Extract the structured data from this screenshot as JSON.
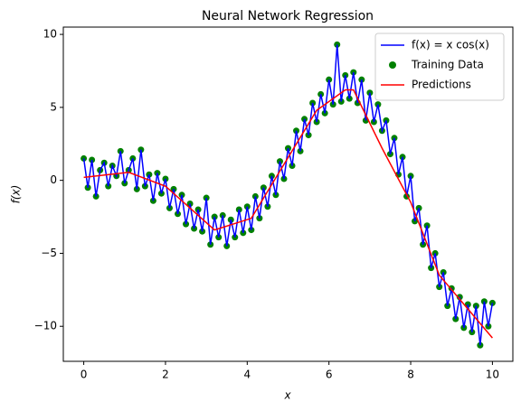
{
  "chart_data": {
    "type": "line",
    "title": "Neural Network Regression",
    "xlabel": "x",
    "ylabel": "f(x)",
    "x": [
      0,
      0.1,
      0.2,
      0.3,
      0.4,
      0.5,
      0.6,
      0.7,
      0.8,
      0.9,
      1,
      1.1,
      1.2,
      1.3,
      1.4,
      1.5,
      1.6,
      1.7,
      1.8,
      1.9,
      2,
      2.1,
      2.2,
      2.3,
      2.4,
      2.5,
      2.6,
      2.7,
      2.8,
      2.9,
      3,
      3.1,
      3.2,
      3.3,
      3.4,
      3.5,
      3.6,
      3.7,
      3.8,
      3.9,
      4,
      4.1,
      4.2,
      4.3,
      4.4,
      4.5,
      4.6,
      4.7,
      4.8,
      4.9,
      5,
      5.1,
      5.2,
      5.3,
      5.4,
      5.5,
      5.6,
      5.7,
      5.8,
      5.9,
      6,
      6.1,
      6.2,
      6.3,
      6.4,
      6.5,
      6.6,
      6.7,
      6.8,
      6.9,
      7,
      7.1,
      7.2,
      7.3,
      7.4,
      7.5,
      7.6,
      7.7,
      7.8,
      7.9,
      8,
      8.1,
      8.2,
      8.3,
      8.4,
      8.5,
      8.6,
      8.7,
      8.8,
      8.9,
      9,
      9.1,
      9.2,
      9.3,
      9.4,
      9.5,
      9.6,
      9.7,
      9.8,
      9.9,
      10
    ],
    "series": [
      {
        "name": "f(x) = x cos(x)",
        "color": "#0000ff",
        "type": "line",
        "values": [
          1.5,
          -0.5,
          1.4,
          -1.1,
          0.7,
          1.2,
          -0.4,
          1.0,
          0.3,
          2.0,
          -0.2,
          0.7,
          1.5,
          -0.6,
          2.1,
          -0.4,
          0.4,
          -1.4,
          0.5,
          -0.9,
          0.1,
          -1.9,
          -0.6,
          -2.3,
          -1.0,
          -3.0,
          -1.6,
          -3.3,
          -2.0,
          -3.5,
          -1.2,
          -4.4,
          -2.5,
          -3.9,
          -2.4,
          -4.5,
          -2.7,
          -3.9,
          -2.0,
          -3.6,
          -1.8,
          -3.4,
          -1.1,
          -2.6,
          -0.5,
          -1.8,
          0.3,
          -1.0,
          1.3,
          0.1,
          2.2,
          1.0,
          3.4,
          2.0,
          4.2,
          3.1,
          5.3,
          4.0,
          5.9,
          4.6,
          6.9,
          5.2,
          9.3,
          5.4,
          7.2,
          5.6,
          7.4,
          5.3,
          6.9,
          4.1,
          6.0,
          4.0,
          5.2,
          3.4,
          4.1,
          1.8,
          2.9,
          0.4,
          1.6,
          -1.1,
          0.3,
          -2.8,
          -1.9,
          -4.4,
          -3.1,
          -6.0,
          -5.0,
          -7.3,
          -6.3,
          -8.6,
          -7.4,
          -9.5,
          -8.0,
          -10.1,
          -8.5,
          -10.4,
          -8.6,
          -11.3,
          -8.3,
          -10.0,
          -8.4
        ]
      },
      {
        "name": "Training Data",
        "color": "#008000",
        "type": "scatter",
        "values": [
          1.5,
          -0.5,
          1.4,
          -1.1,
          0.7,
          1.2,
          -0.4,
          1.0,
          0.3,
          2.0,
          -0.2,
          0.7,
          1.5,
          -0.6,
          2.1,
          -0.4,
          0.4,
          -1.4,
          0.5,
          -0.9,
          0.1,
          -1.9,
          -0.6,
          -2.3,
          -1.0,
          -3.0,
          -1.6,
          -3.3,
          -2.0,
          -3.5,
          -1.2,
          -4.4,
          -2.5,
          -3.9,
          -2.4,
          -4.5,
          -2.7,
          -3.9,
          -2.0,
          -3.6,
          -1.8,
          -3.4,
          -1.1,
          -2.6,
          -0.5,
          -1.8,
          0.3,
          -1.0,
          1.3,
          0.1,
          2.2,
          1.0,
          3.4,
          2.0,
          4.2,
          3.1,
          5.3,
          4.0,
          5.9,
          4.6,
          6.9,
          5.2,
          9.3,
          5.4,
          7.2,
          5.6,
          7.4,
          5.3,
          6.9,
          4.1,
          6.0,
          4.0,
          5.2,
          3.4,
          4.1,
          1.8,
          2.9,
          0.4,
          1.6,
          -1.1,
          0.3,
          -2.8,
          -1.9,
          -4.4,
          -3.1,
          -6.0,
          -5.0,
          -7.3,
          -6.3,
          -8.6,
          -7.4,
          -9.5,
          -8.0,
          -10.1,
          -8.5,
          -10.4,
          -8.6,
          -11.3,
          -8.3,
          -10.0,
          -8.4
        ]
      },
      {
        "name": "Predictions",
        "color": "#ff0000",
        "type": "line",
        "x": [
          0,
          1.1,
          2,
          3.2,
          4.1,
          5.7,
          6.4,
          6.6,
          7.3,
          8,
          8.7,
          10
        ],
        "values": [
          0.2,
          0.55,
          -0.4,
          -3.4,
          -2.6,
          4.8,
          6.2,
          6.2,
          2.2,
          -1.5,
          -6.5,
          -10.8
        ]
      }
    ],
    "xlim": [
      -0.5,
      10.5
    ],
    "ylim": [
      -12.4,
      10.5
    ],
    "xticks": [
      0,
      2,
      4,
      6,
      8,
      10
    ],
    "yticks": [
      -10,
      -5,
      0,
      5,
      10
    ],
    "legend": "upper right"
  }
}
